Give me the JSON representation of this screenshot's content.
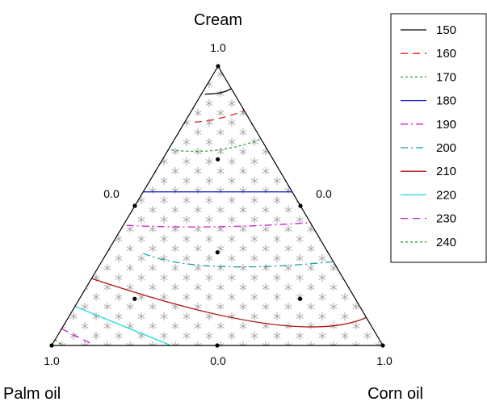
{
  "chart_data": {
    "type": "ternary-contour",
    "components": {
      "top": "Cream",
      "left": "Palm oil",
      "right": "Corn oil"
    },
    "tick_labels": {
      "top_vertex": "1.0",
      "left_vertex": "1.0",
      "right_vertex": "1.0",
      "left_edge_mid": "0.0",
      "right_edge_mid": "0.0",
      "bottom_edge_mid": "0.0"
    },
    "design_points": [
      {
        "cream": 1.0,
        "palm_oil": 0.0,
        "corn_oil": 0.0
      },
      {
        "cream": 0.0,
        "palm_oil": 1.0,
        "corn_oil": 0.0
      },
      {
        "cream": 0.0,
        "palm_oil": 0.0,
        "corn_oil": 1.0
      },
      {
        "cream": 0.5,
        "palm_oil": 0.5,
        "corn_oil": 0.0
      },
      {
        "cream": 0.5,
        "palm_oil": 0.0,
        "corn_oil": 0.5
      },
      {
        "cream": 0.0,
        "palm_oil": 0.5,
        "corn_oil": 0.5
      },
      {
        "cream": 0.667,
        "palm_oil": 0.167,
        "corn_oil": 0.167
      },
      {
        "cream": 0.333,
        "palm_oil": 0.333,
        "corn_oil": 0.333
      },
      {
        "cream": 0.167,
        "palm_oil": 0.667,
        "corn_oil": 0.167
      },
      {
        "cream": 0.167,
        "palm_oil": 0.167,
        "corn_oil": 0.667
      }
    ],
    "legend_placement": "top-right",
    "contours": [
      {
        "level": "150",
        "color": "#000000",
        "dash": "solid",
        "points": [
          [
            0.9,
            0.09,
            0.01
          ],
          [
            0.905,
            0.04,
            0.055
          ],
          [
            0.92,
            0.0,
            0.08
          ]
        ]
      },
      {
        "level": "160",
        "color": "#e8251f",
        "dash": "dash",
        "points": [
          [
            0.8,
            0.17,
            0.03
          ],
          [
            0.812,
            0.094,
            0.094
          ],
          [
            0.84,
            0.0,
            0.16
          ]
        ]
      },
      {
        "level": "170",
        "color": "#2ca02c",
        "dash": "dot",
        "points": [
          [
            0.7,
            0.29,
            0.01
          ],
          [
            0.7,
            0.15,
            0.15
          ],
          [
            0.74,
            0.0,
            0.26
          ]
        ]
      },
      {
        "level": "180",
        "color": "#1a2ac8",
        "dash": "solid",
        "points": [
          [
            0.55,
            0.45,
            0.0
          ],
          [
            0.55,
            0.225,
            0.225
          ],
          [
            0.55,
            0.0,
            0.45
          ]
        ]
      },
      {
        "level": "190",
        "color": "#cc22cc",
        "dash": "dashdot",
        "points": [
          [
            0.43,
            0.56,
            0.01
          ],
          [
            0.425,
            0.29,
            0.285
          ],
          [
            0.44,
            0.0,
            0.56
          ]
        ]
      },
      {
        "level": "200",
        "color": "#17a0a0",
        "dash": "dashdot",
        "points": [
          [
            0.33,
            0.56,
            0.11
          ],
          [
            0.283,
            0.358,
            0.359
          ],
          [
            0.3,
            0.0,
            0.7
          ]
        ]
      },
      {
        "level": "210",
        "color": "#b01414",
        "dash": "solid",
        "points": [
          [
            0.24,
            0.76,
            0.0
          ],
          [
            0.08,
            0.32,
            0.6
          ],
          [
            0.1,
            0.0,
            0.9
          ]
        ]
      },
      {
        "level": "220",
        "color": "#22d8d8",
        "dash": "solid",
        "points": [
          [
            0.14,
            0.86,
            0.0
          ],
          [
            0.0,
            0.64,
            0.36
          ]
        ]
      },
      {
        "level": "230",
        "color": "#cc22cc",
        "dash": "dash",
        "points": [
          [
            0.06,
            0.94,
            0.0
          ],
          [
            0.0,
            0.87,
            0.13
          ]
        ]
      },
      {
        "level": "240",
        "color": "#2ca02c",
        "dash": "dot",
        "points": [
          [
            0.02,
            0.98,
            0.0
          ],
          [
            0.0,
            0.965,
            0.035
          ]
        ]
      }
    ]
  }
}
